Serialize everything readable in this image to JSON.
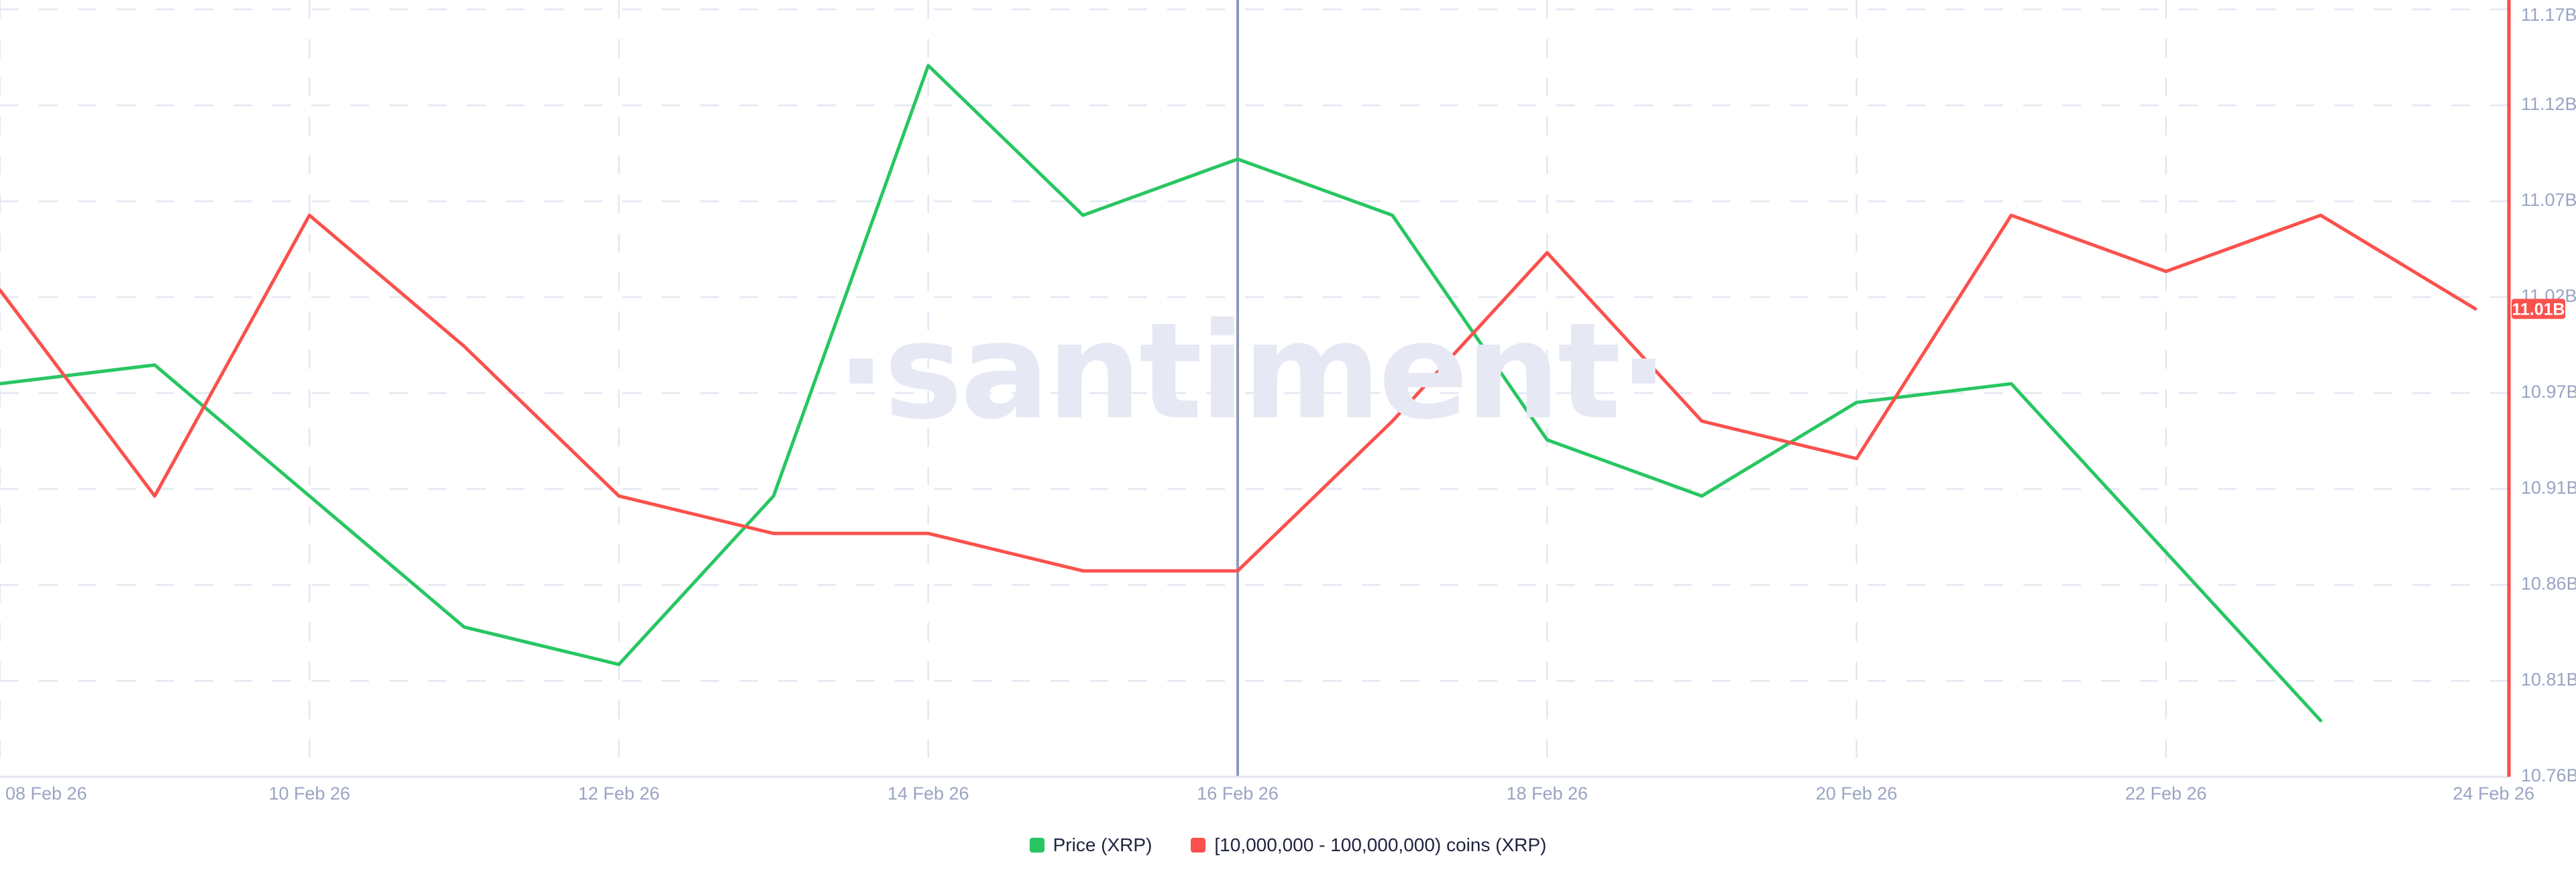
{
  "watermark": "·santiment·",
  "colors": {
    "price_green": "#28c662",
    "supply_red": "#fa514d",
    "right_axis_line": "#fa4b45",
    "grid_line": "#e3e7f1",
    "bottom_axis_line": "#e2e5ed",
    "tick_label": "#9aa4c3",
    "legend_text": "#20243f",
    "crosshair": "#8d99b5",
    "watermark": "#e6e9f4",
    "badge_background": "#fa514d",
    "badge_text": "#ffffff"
  },
  "chart_data": {
    "type": "line",
    "title": "",
    "categories": [
      "08 Feb 26",
      "09 Feb 26",
      "10 Feb 26",
      "11 Feb 26",
      "12 Feb 26",
      "13 Feb 26",
      "14 Feb 26",
      "15 Feb 26",
      "16 Feb 26",
      "17 Feb 26",
      "18 Feb 26",
      "19 Feb 26",
      "20 Feb 26",
      "21 Feb 26",
      "22 Feb 26",
      "23 Feb 26",
      "24 Feb 26"
    ],
    "x_tick_labels_shown": [
      "08 Feb 26",
      "10 Feb 26",
      "12 Feb 26",
      "14 Feb 26",
      "16 Feb 26",
      "18 Feb 26",
      "20 Feb 26",
      "22 Feb 26",
      "24 Feb 26"
    ],
    "y_axis": {
      "side": "right",
      "unit": "B",
      "min": 10.76,
      "max": 11.17,
      "tick_labels": [
        "11.17B",
        "11.12B",
        "11.07B",
        "11.02B",
        "10.97B",
        "10.91B",
        "10.86B",
        "10.81B",
        "10.76B"
      ]
    },
    "series": [
      {
        "name": "Price (XRP)",
        "color": "#28c662",
        "note": "price axis hidden; values given on the visible B coin-supply axis scale",
        "values": [
          10.97,
          10.98,
          10.91,
          10.84,
          10.82,
          10.91,
          11.14,
          11.06,
          11.09,
          11.06,
          10.94,
          10.91,
          10.96,
          10.97,
          10.88,
          10.79,
          null
        ]
      },
      {
        "name": "[10,000,000 - 100,000,000) coins (XRP)",
        "color": "#fa514d",
        "values": [
          11.02,
          10.91,
          11.06,
          10.99,
          10.91,
          10.89,
          10.89,
          10.87,
          10.87,
          10.95,
          11.04,
          10.95,
          10.93,
          11.06,
          11.03,
          11.06,
          11.01
        ]
      }
    ],
    "current_value_badge": {
      "label": "11.01B",
      "value": 11.01,
      "series": "[10,000,000 - 100,000,000) coins (XRP)"
    },
    "crosshair": {
      "at": "16 Feb 26",
      "index": 8
    },
    "grid": "dashed",
    "legend_position": "bottom-center"
  },
  "legend": {
    "items": [
      {
        "label": "Price (XRP)",
        "color": "#28c662"
      },
      {
        "label": "[10,000,000 - 100,000,000) coins (XRP)",
        "color": "#fa514d"
      }
    ]
  }
}
